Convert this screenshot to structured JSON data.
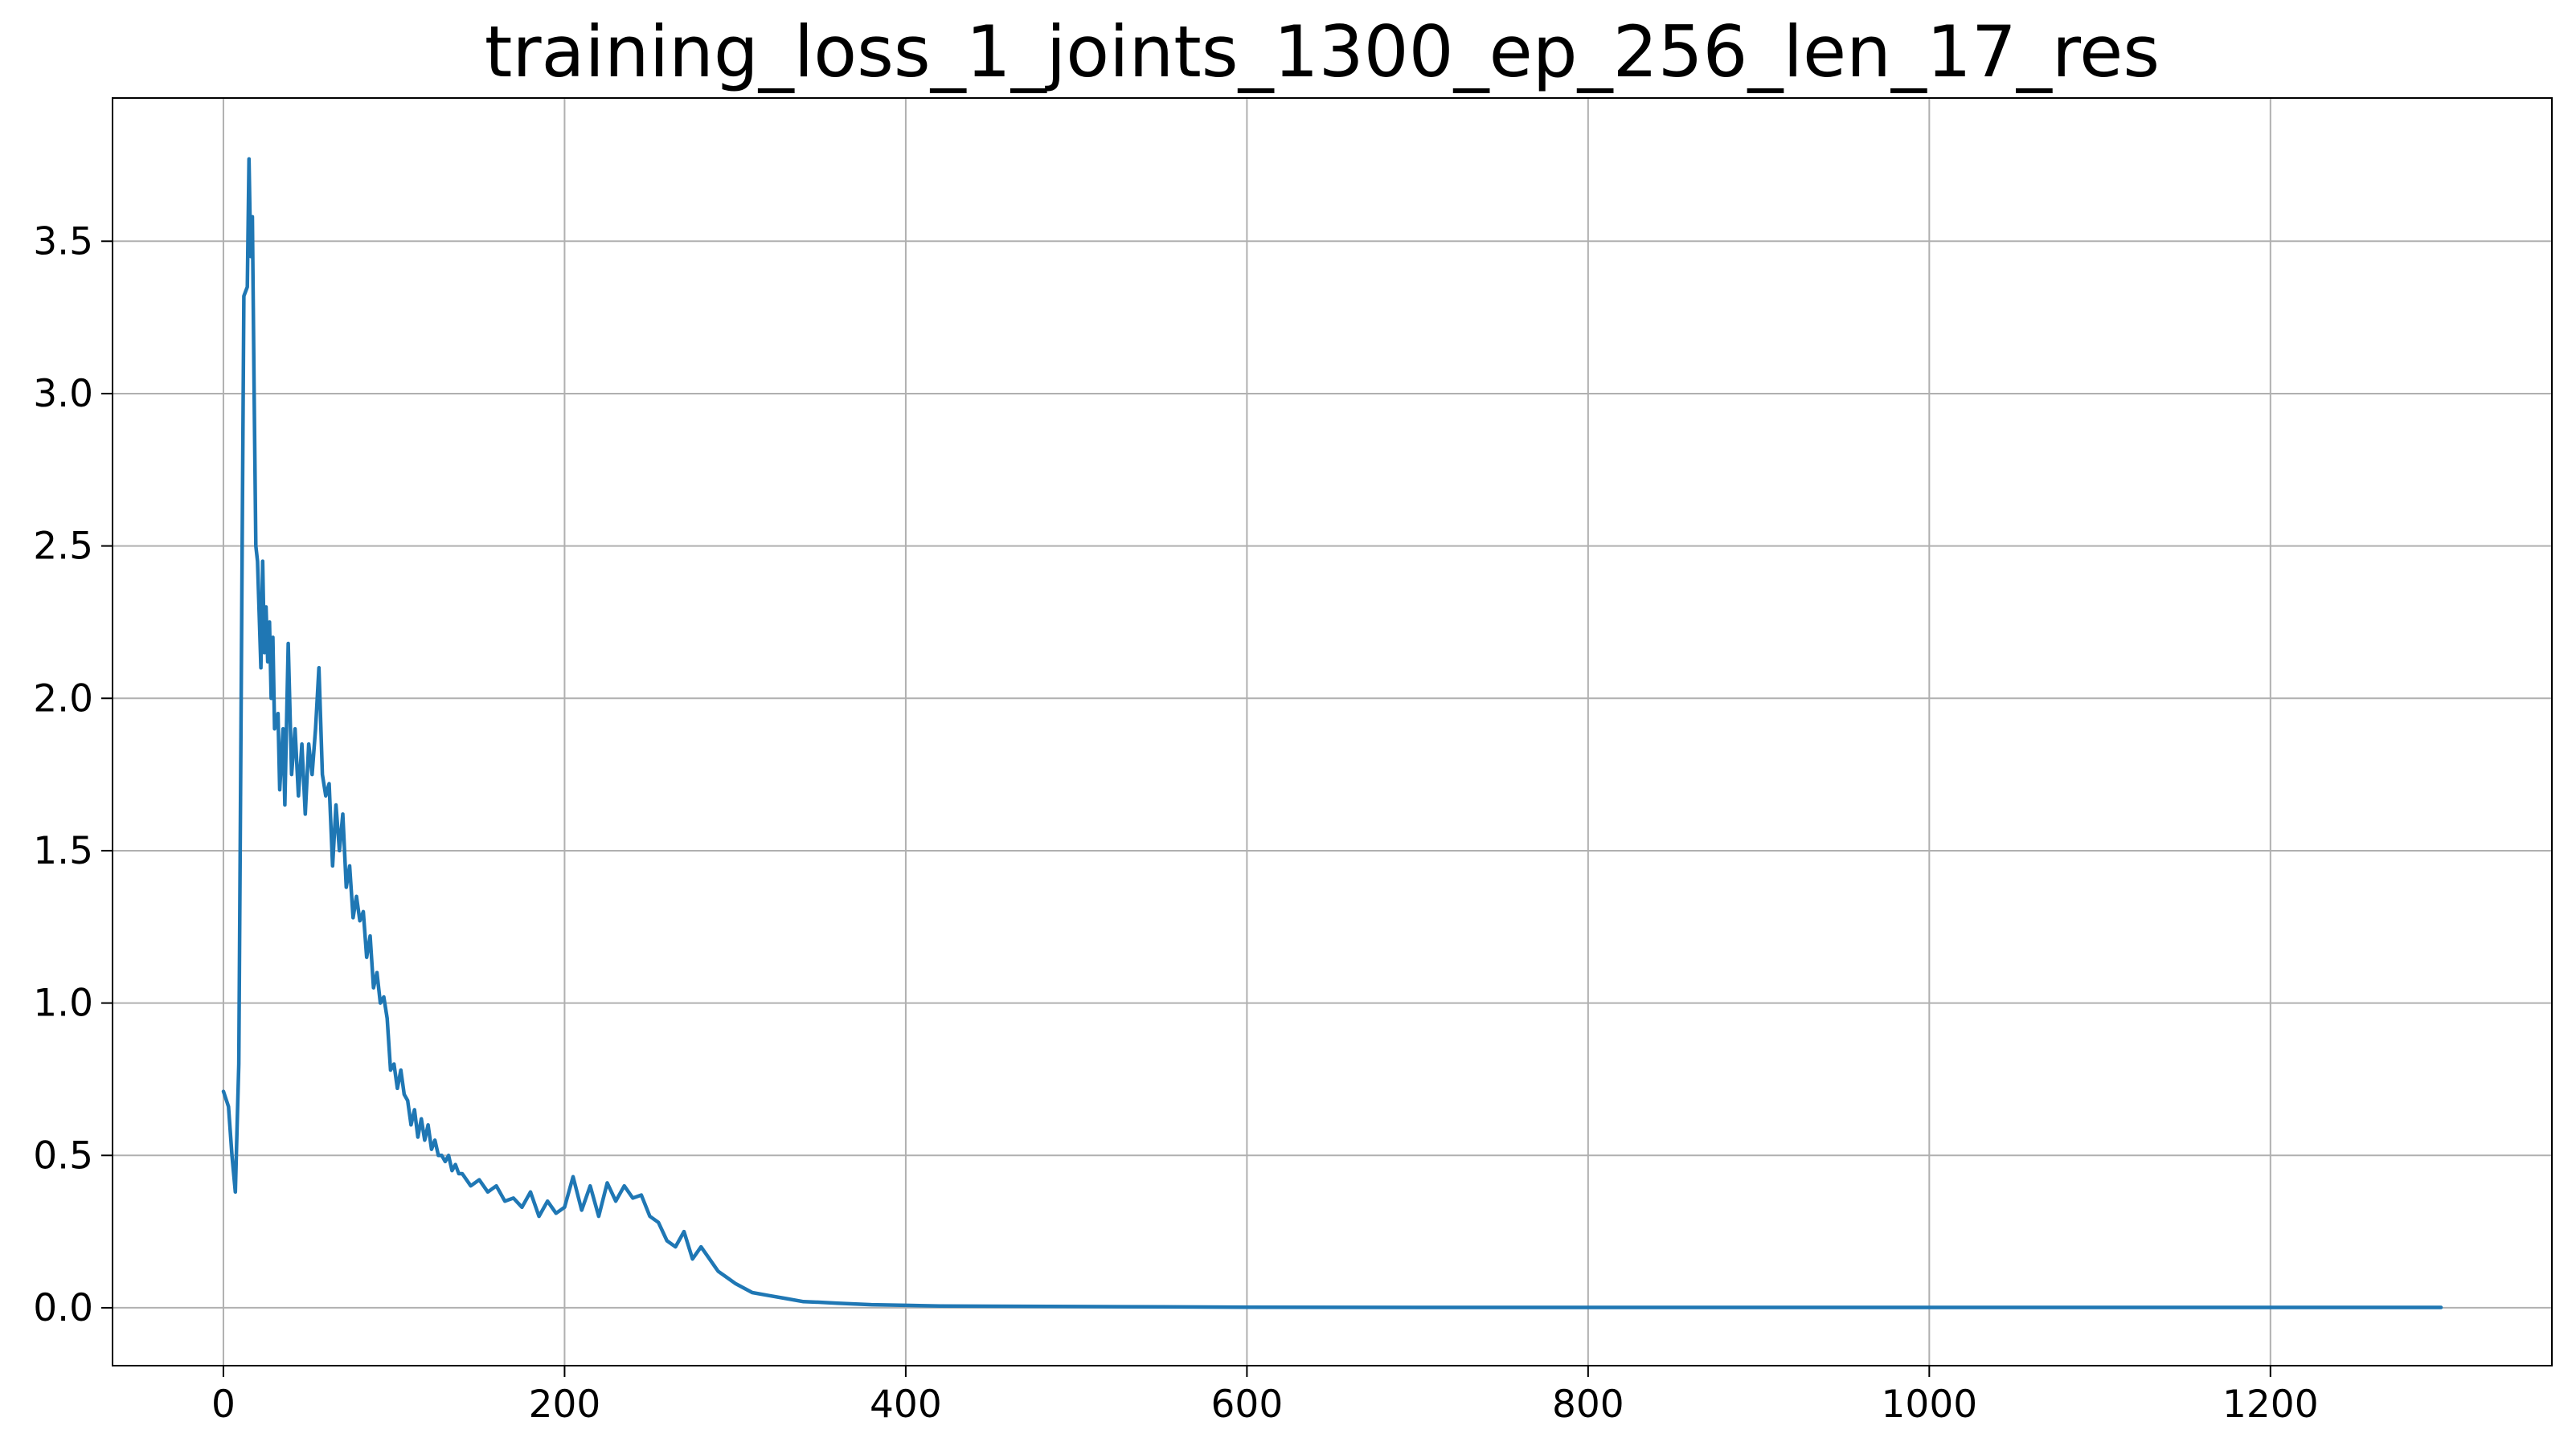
{
  "chart_data": {
    "type": "line",
    "title": "training_loss_1_joints_1300_ep_256_len_17_res",
    "xlabel": "",
    "ylabel": "",
    "xlim": [
      -65,
      1365
    ],
    "ylim": [
      -0.19,
      3.97
    ],
    "xticks": [
      0,
      200,
      400,
      600,
      800,
      1000,
      1200
    ],
    "yticks": [
      0.0,
      0.5,
      1.0,
      1.5,
      2.0,
      2.5,
      3.0,
      3.5
    ],
    "ytick_labels": [
      "0.0",
      "0.5",
      "1.0",
      "1.5",
      "2.0",
      "2.5",
      "3.0",
      "3.5"
    ],
    "grid": true,
    "legend": "none",
    "series": [
      {
        "color": "#1f77b4",
        "x": [
          0,
          3,
          5,
          7,
          9,
          11,
          12,
          14,
          15,
          16,
          17,
          18,
          19,
          20,
          22,
          23,
          24,
          25,
          26,
          27,
          28,
          29,
          30,
          32,
          33,
          35,
          36,
          38,
          40,
          42,
          44,
          46,
          48,
          50,
          52,
          54,
          56,
          58,
          60,
          62,
          64,
          66,
          68,
          70,
          72,
          74,
          76,
          78,
          80,
          82,
          84,
          86,
          88,
          90,
          92,
          94,
          96,
          98,
          100,
          102,
          104,
          106,
          108,
          110,
          112,
          114,
          116,
          118,
          120,
          122,
          124,
          126,
          128,
          130,
          132,
          134,
          136,
          138,
          140,
          145,
          150,
          155,
          160,
          165,
          170,
          175,
          180,
          185,
          190,
          195,
          200,
          205,
          210,
          215,
          220,
          225,
          230,
          235,
          240,
          245,
          250,
          255,
          260,
          265,
          270,
          275,
          280,
          285,
          290,
          295,
          300,
          310,
          320,
          330,
          340,
          350,
          360,
          380,
          400,
          420,
          450,
          500,
          550,
          600,
          700,
          800,
          900,
          1000,
          1100,
          1200,
          1300
        ],
        "y": [
          0.71,
          0.66,
          0.5,
          0.38,
          0.8,
          2.5,
          3.32,
          3.35,
          3.77,
          3.45,
          3.58,
          3.0,
          2.5,
          2.45,
          2.1,
          2.45,
          2.15,
          2.3,
          2.12,
          2.25,
          2.0,
          2.2,
          1.9,
          1.95,
          1.7,
          1.9,
          1.65,
          2.18,
          1.75,
          1.9,
          1.68,
          1.85,
          1.62,
          1.85,
          1.75,
          1.9,
          2.1,
          1.75,
          1.68,
          1.72,
          1.45,
          1.65,
          1.5,
          1.62,
          1.38,
          1.45,
          1.28,
          1.35,
          1.27,
          1.3,
          1.15,
          1.22,
          1.05,
          1.1,
          1.0,
          1.02,
          0.95,
          0.78,
          0.8,
          0.72,
          0.78,
          0.7,
          0.68,
          0.6,
          0.65,
          0.56,
          0.62,
          0.55,
          0.6,
          0.52,
          0.55,
          0.5,
          0.5,
          0.48,
          0.5,
          0.45,
          0.47,
          0.44,
          0.44,
          0.4,
          0.42,
          0.38,
          0.4,
          0.35,
          0.36,
          0.33,
          0.38,
          0.3,
          0.35,
          0.31,
          0.33,
          0.43,
          0.32,
          0.4,
          0.3,
          0.41,
          0.35,
          0.4,
          0.36,
          0.37,
          0.3,
          0.28,
          0.22,
          0.2,
          0.25,
          0.16,
          0.2,
          0.16,
          0.12,
          0.1,
          0.08,
          0.05,
          0.04,
          0.03,
          0.02,
          0.018,
          0.015,
          0.01,
          0.008,
          0.006,
          0.005,
          0.004,
          0.003,
          0.002,
          0.001,
          0.001,
          0.001,
          0.001,
          0.001,
          0.001,
          0.001
        ]
      }
    ]
  }
}
